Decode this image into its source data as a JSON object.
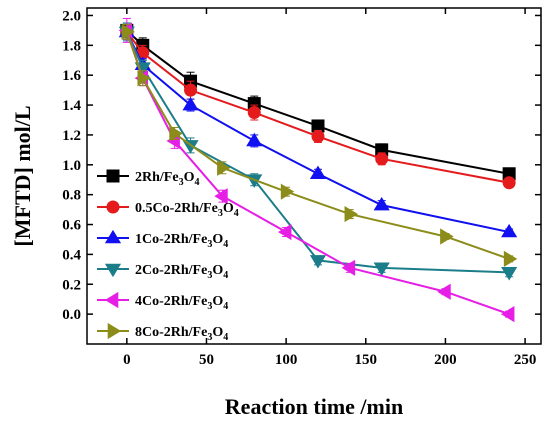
{
  "chart_data": {
    "type": "line",
    "title": "",
    "xlabel": "Reaction time /min",
    "ylabel": "[MFTD] mol/L",
    "xlim": [
      -25,
      260
    ],
    "ylim": [
      -0.2,
      2.05
    ],
    "xticks": [
      0,
      50,
      100,
      150,
      200,
      250
    ],
    "yticks": [
      0.0,
      0.2,
      0.4,
      0.6,
      0.8,
      1.0,
      1.2,
      1.4,
      1.6,
      1.8,
      2.0
    ],
    "grid": false,
    "legend_position": "left",
    "series": [
      {
        "name": "2Rh/Fe3O4",
        "label_main": "2Rh/Fe",
        "sub1": "3",
        "mid": "O",
        "sub2": "4",
        "color": "#000000",
        "marker": "square",
        "x": [
          0,
          10,
          40,
          80,
          120,
          160,
          240
        ],
        "y": [
          1.9,
          1.8,
          1.56,
          1.41,
          1.26,
          1.1,
          0.94
        ],
        "err": [
          0.04,
          0.05,
          0.06,
          0.05,
          0.04,
          0.04,
          0.03
        ]
      },
      {
        "name": "0.5Co-2Rh/Fe3O4",
        "label_main": "0.5Co-2Rh/Fe",
        "sub1": "3",
        "mid": "O",
        "sub2": "4",
        "color": "#e41a1c",
        "marker": "circle",
        "x": [
          0,
          10,
          40,
          80,
          120,
          160,
          240
        ],
        "y": [
          1.89,
          1.75,
          1.5,
          1.35,
          1.19,
          1.04,
          0.88
        ],
        "err": [
          0.04,
          0.05,
          0.06,
          0.05,
          0.04,
          0.04,
          0.03
        ]
      },
      {
        "name": "1Co-2Rh/Fe3O4",
        "label_main": "1Co-2Rh/Fe",
        "sub1": "3",
        "mid": "O",
        "sub2": "4",
        "color": "#1010f0",
        "marker": "triangle-up",
        "x": [
          0,
          10,
          40,
          80,
          120,
          160,
          240
        ],
        "y": [
          1.89,
          1.67,
          1.4,
          1.16,
          0.94,
          0.73,
          0.55
        ],
        "err": [
          0.05,
          0.04,
          0.04,
          0.04,
          0.03,
          0.03,
          0.02
        ]
      },
      {
        "name": "2Co-2Rh/Fe3O4",
        "label_main": "2Co-2Rh/Fe",
        "sub1": "3",
        "mid": "O",
        "sub2": "4",
        "color": "#1c7d8a",
        "marker": "triangle-down",
        "x": [
          0,
          10,
          40,
          80,
          120,
          160,
          240
        ],
        "y": [
          1.89,
          1.65,
          1.13,
          0.9,
          0.36,
          0.31,
          0.28
        ],
        "err": [
          0.06,
          0.05,
          0.05,
          0.04,
          0.03,
          0.03,
          0.03
        ]
      },
      {
        "name": "4Co-2Rh/Fe3O4",
        "label_main": "4Co-2Rh/Fe",
        "sub1": "3",
        "mid": "O",
        "sub2": "4",
        "color": "#e61ee6",
        "marker": "triangle-left",
        "x": [
          0,
          10,
          30,
          60,
          100,
          140,
          200,
          240
        ],
        "y": [
          1.9,
          1.58,
          1.16,
          0.79,
          0.55,
          0.31,
          0.15,
          0.0
        ],
        "err": [
          0.08,
          0.05,
          0.05,
          0.04,
          0.03,
          0.03,
          0.02,
          0.02
        ]
      },
      {
        "name": "8Co-2Rh/Fe3O4",
        "label_main": "8Co-2Rh/Fe",
        "sub1": "3",
        "mid": "O",
        "sub2": "4",
        "color": "#8c8c1a",
        "marker": "triangle-right",
        "x": [
          0,
          10,
          30,
          60,
          100,
          140,
          200,
          240
        ],
        "y": [
          1.89,
          1.58,
          1.21,
          0.98,
          0.82,
          0.67,
          0.52,
          0.37
        ],
        "err": [
          0.05,
          0.05,
          0.04,
          0.04,
          0.03,
          0.03,
          0.02,
          0.02
        ]
      }
    ]
  }
}
